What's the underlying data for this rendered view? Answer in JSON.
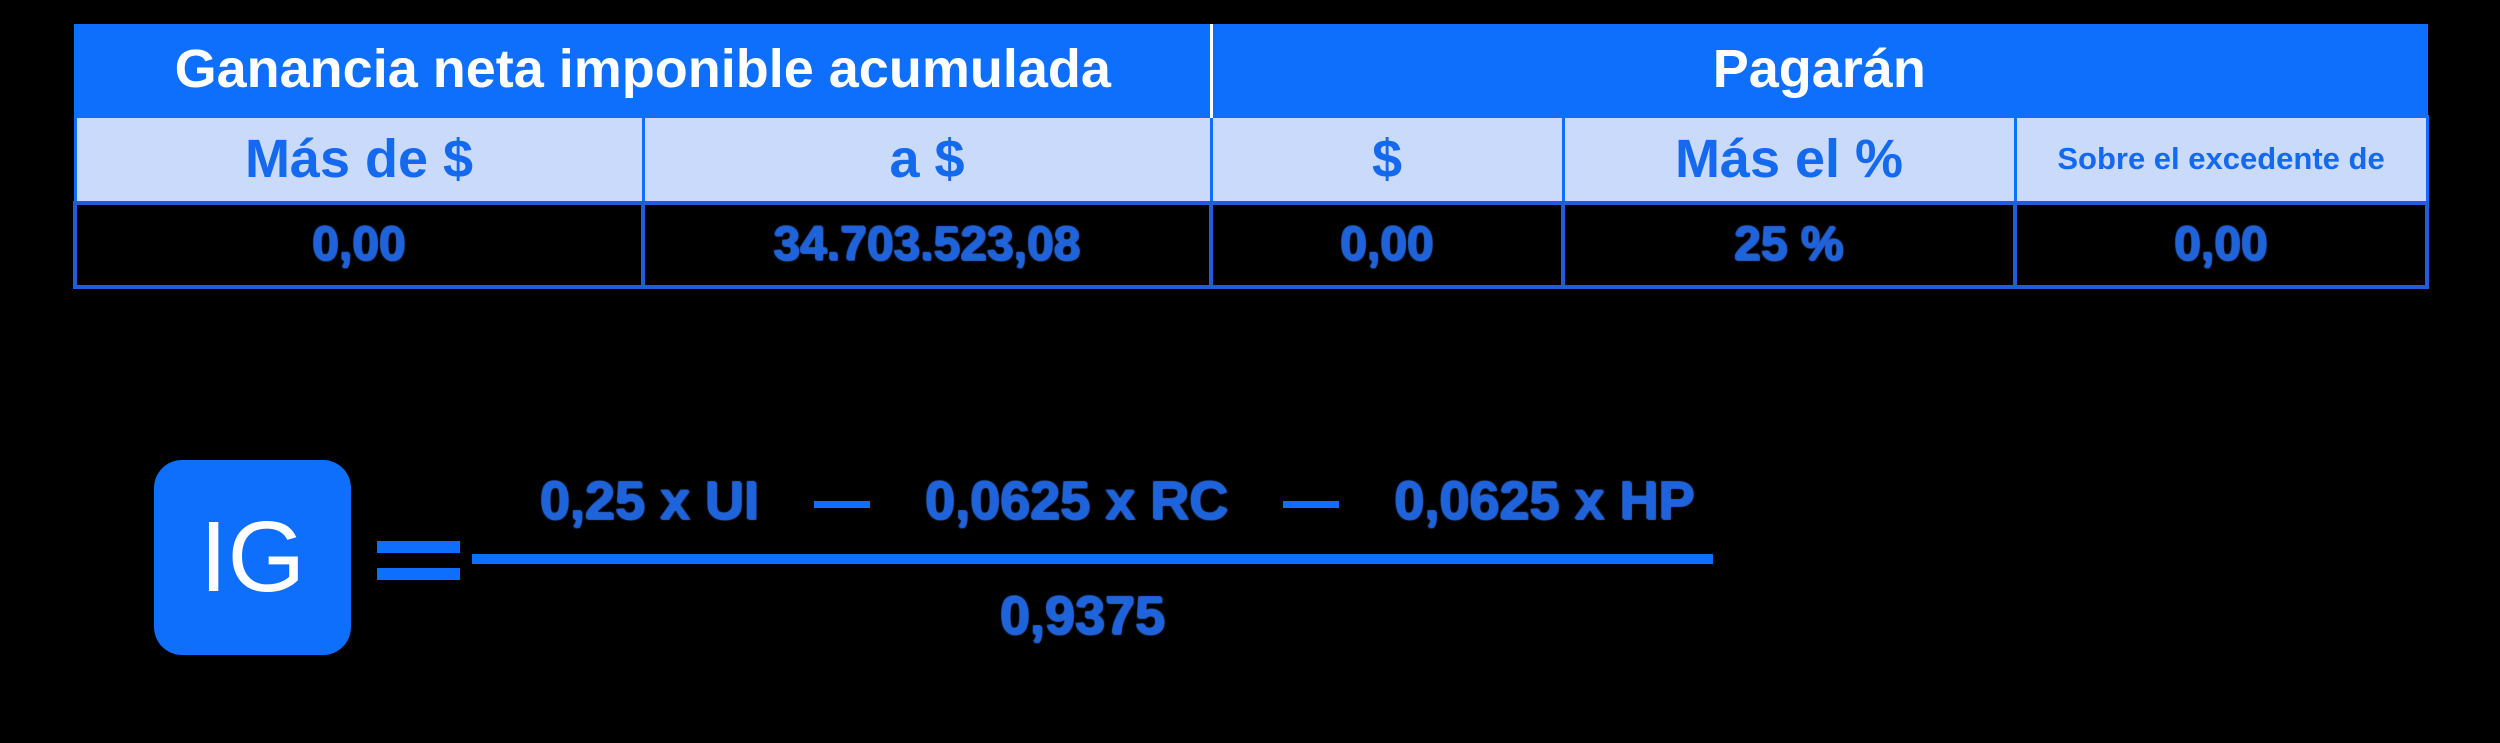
{
  "table": {
    "group_headers": {
      "left": "Ganancia neta imponible acumulada",
      "right": "Pagarán"
    },
    "columns": [
      "Más de $",
      "a $",
      "$",
      "Más el %",
      "Sobre el excedente de"
    ],
    "rows": [
      [
        "0,00",
        "34.703.523,08",
        "0,00",
        "25 %",
        "0,00"
      ]
    ]
  },
  "formula": {
    "lhs": "IG",
    "numerator": {
      "term1": "0,25 x UI",
      "term2": "0,0625 x RC",
      "term3": "0,0625 x HP"
    },
    "denominator": "0,9375"
  },
  "colors": {
    "header_blue": "#0e6ffc",
    "subheader_bg": "#c9dafa",
    "text_blue": "#1d63db",
    "background": "#000000"
  }
}
